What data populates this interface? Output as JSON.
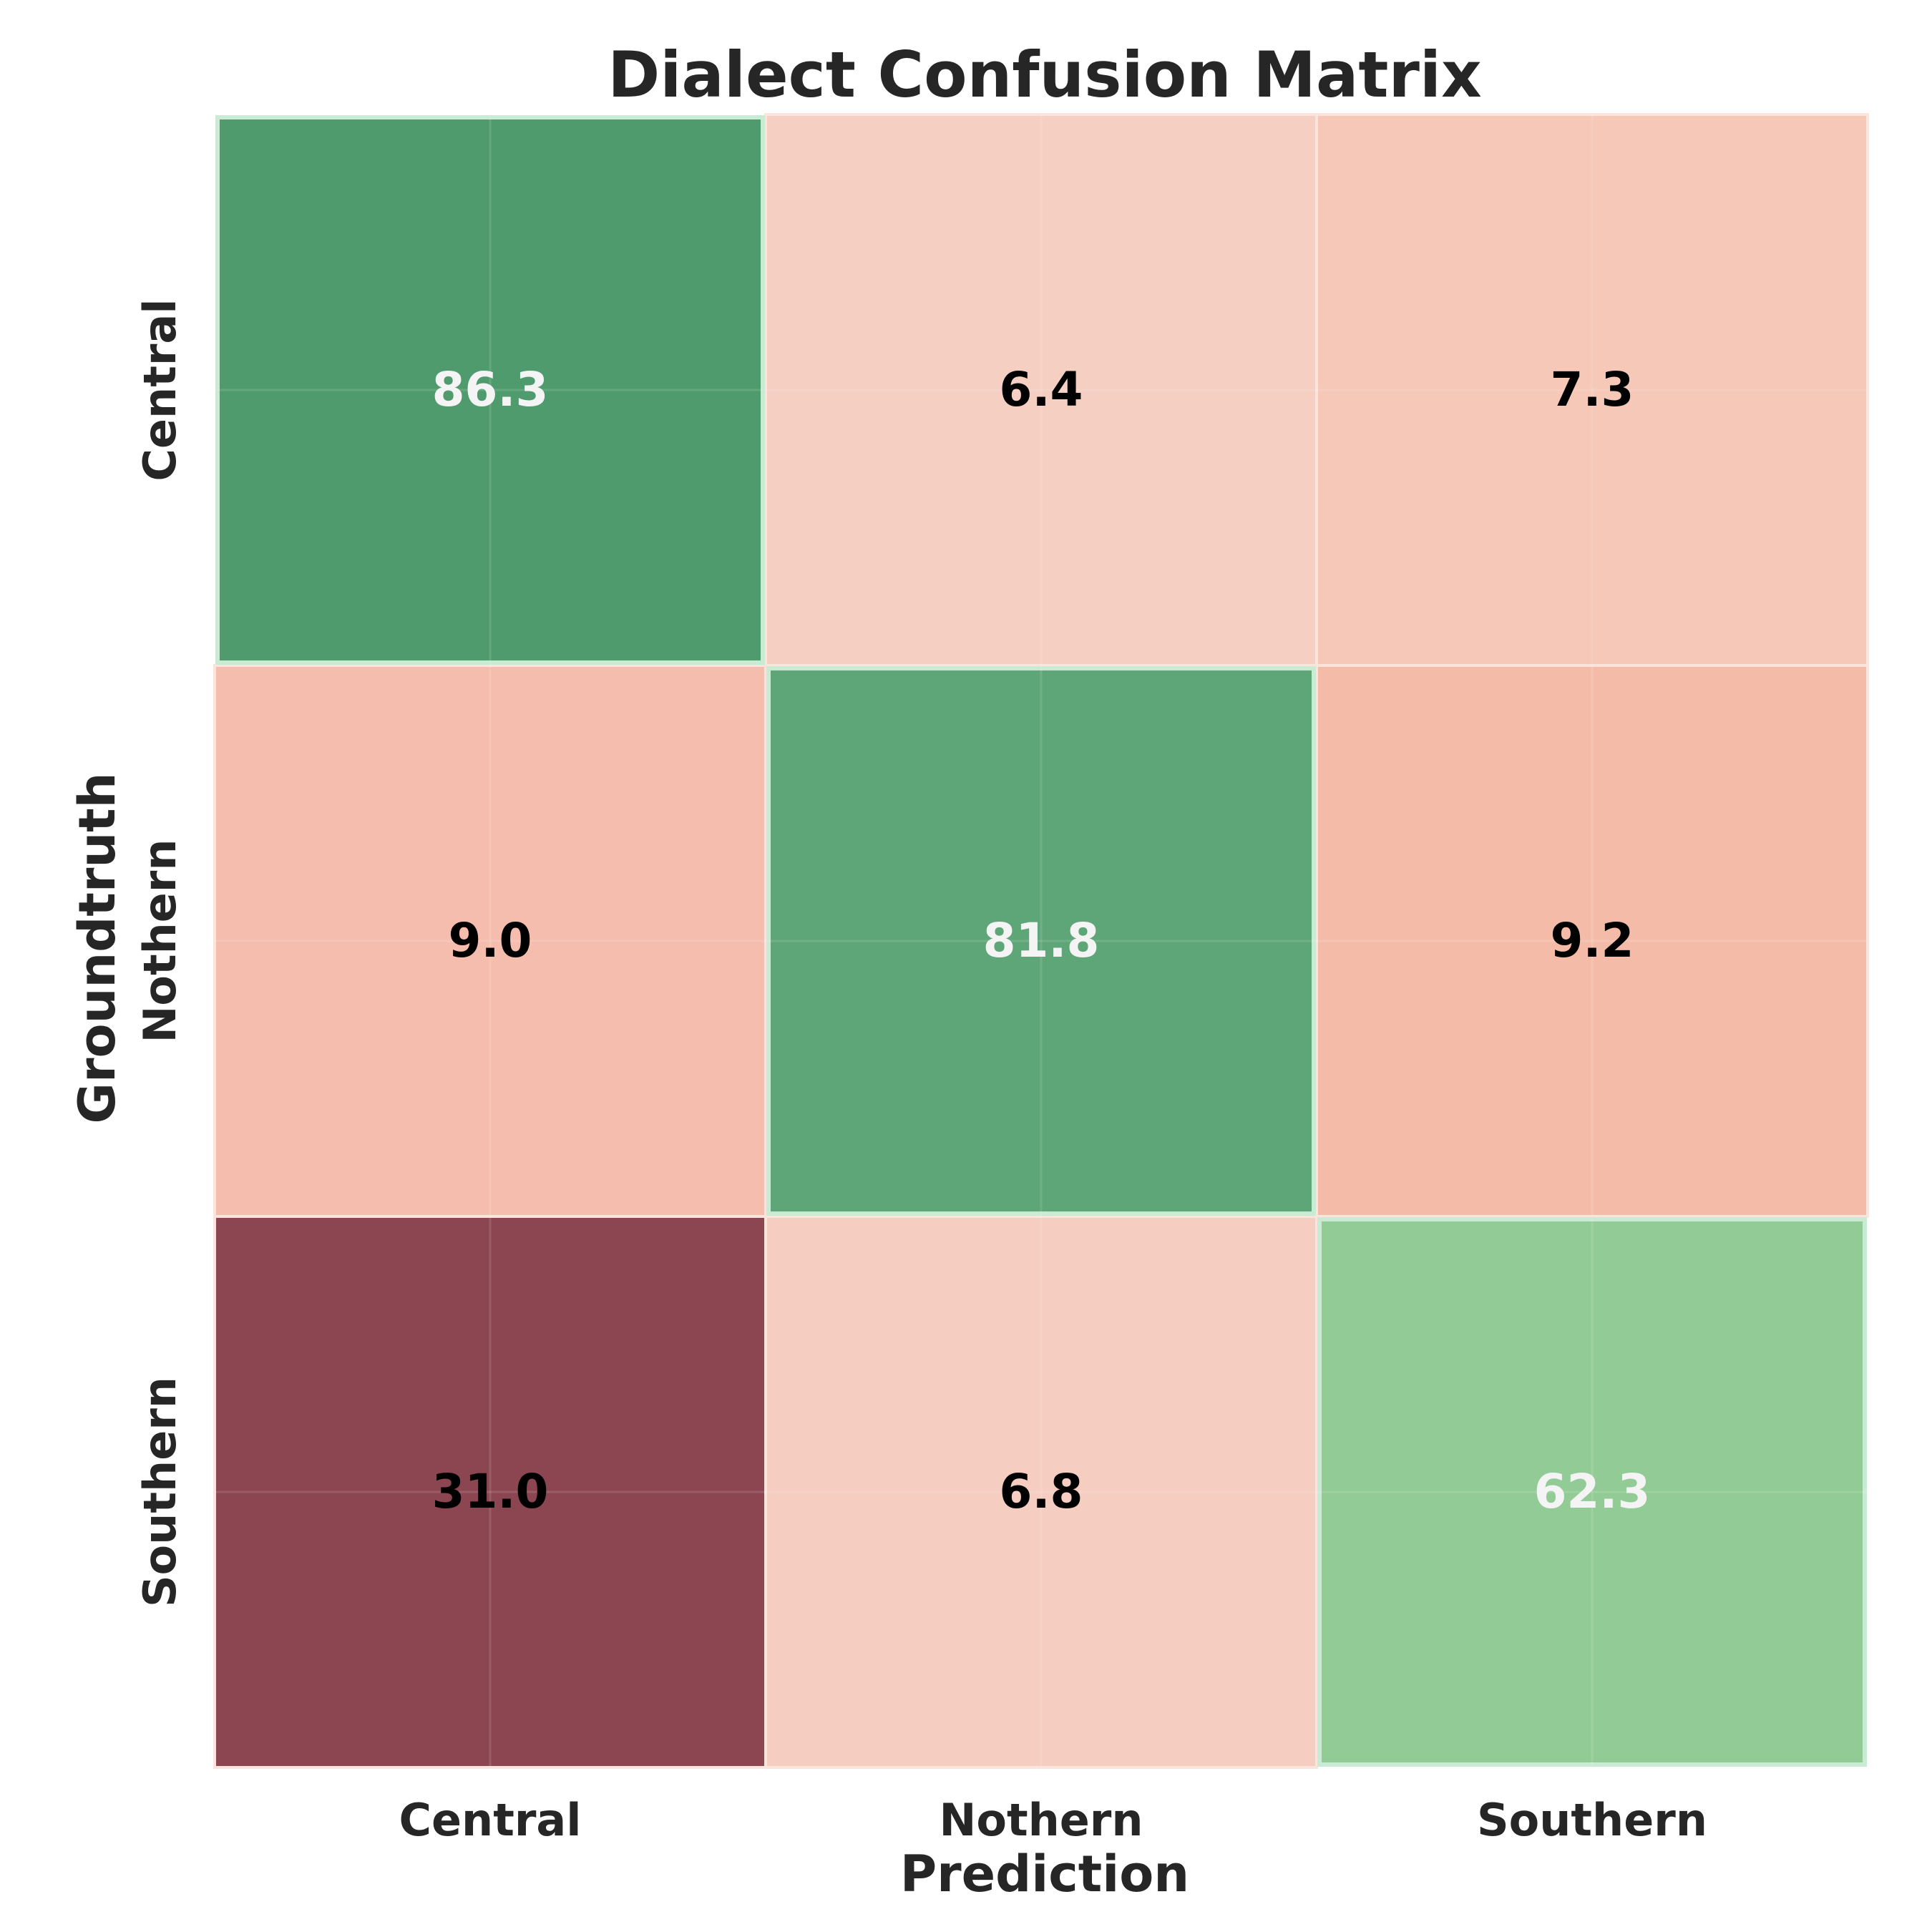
{
  "chart_data": {
    "type": "heatmap",
    "title": "Dialect Confusion Matrix",
    "xlabel": "Prediction",
    "ylabel": "Groundtruth",
    "x_categories": [
      "Central",
      "Nothern",
      "Southern"
    ],
    "y_categories": [
      "Central",
      "Nothern",
      "Southern"
    ],
    "values": [
      [
        86.3,
        6.4,
        7.3
      ],
      [
        9.0,
        81.8,
        9.2
      ],
      [
        31.0,
        6.8,
        62.3
      ]
    ],
    "cell_colors": [
      [
        "#4f9b6e",
        "#f6cfc3",
        "#f5c8b8"
      ],
      [
        "#f5bdad",
        "#5ea677",
        "#f4bca8"
      ],
      [
        "#8c4651",
        "#f5cdc1",
        "#92cb95"
      ]
    ],
    "label_colors": [
      [
        "#f4f4f4",
        "#000000",
        "#000000"
      ],
      [
        "#000000",
        "#f4f4f4",
        "#000000"
      ],
      [
        "#000000",
        "#000000",
        "#f4f4f4"
      ]
    ],
    "grid": true
  }
}
